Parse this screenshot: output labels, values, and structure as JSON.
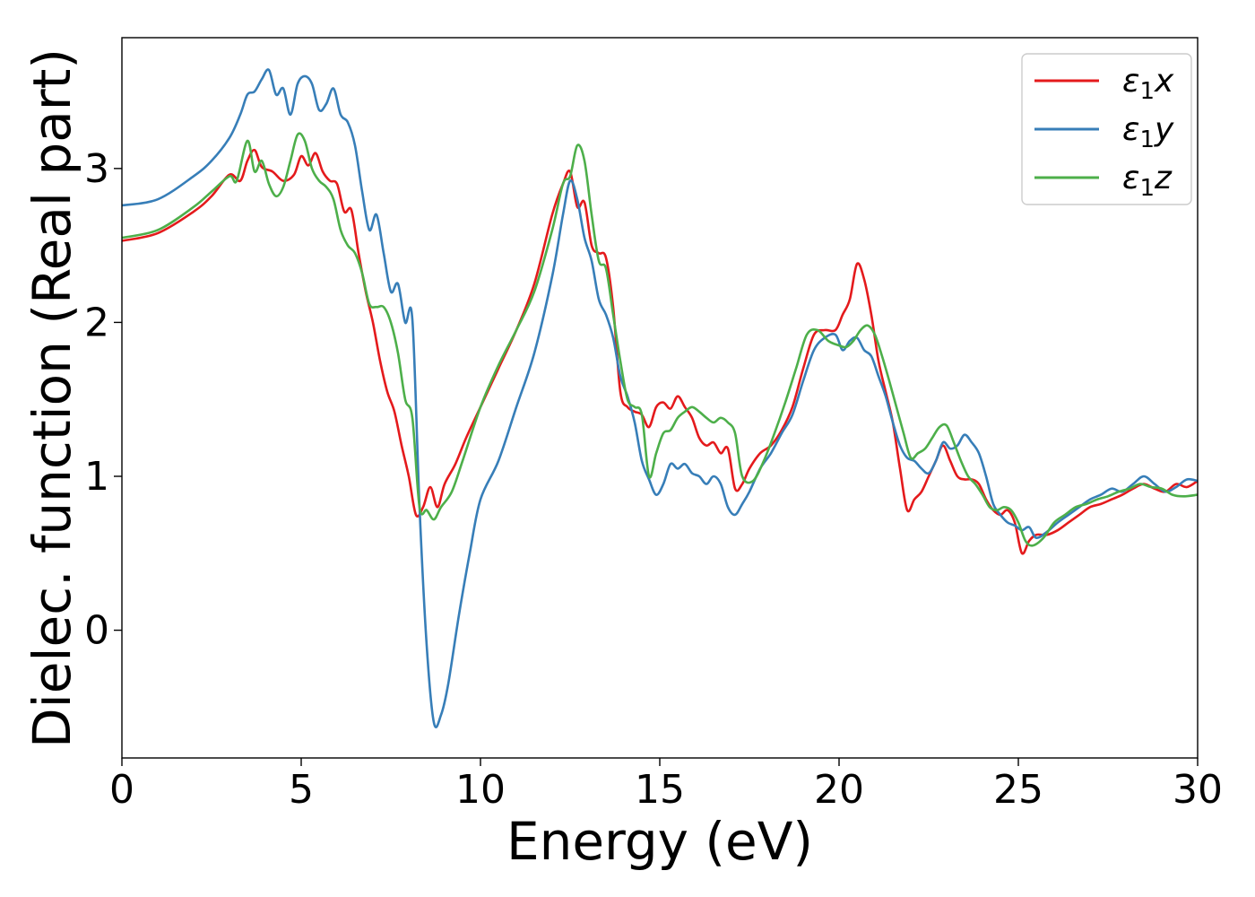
{
  "chart_data": {
    "type": "line",
    "xlabel": "Energy (eV)",
    "ylabel": "Dielec. function (Real part)",
    "xlim": [
      0,
      30
    ],
    "ylim": [
      -0.83,
      3.85
    ],
    "xticks": [
      0,
      5,
      10,
      15,
      20,
      25,
      30
    ],
    "yticks": [
      0,
      1,
      2,
      3
    ],
    "grid": false,
    "legend_position": "top-right",
    "series": [
      {
        "name": "ε1x",
        "label_base": "ε",
        "label_sub": "1",
        "label_suffix": "x",
        "color": "#e41a1c",
        "x": [
          0,
          1,
          2,
          2.5,
          3,
          3.3,
          3.5,
          3.7,
          3.9,
          4.2,
          4.5,
          4.8,
          5.0,
          5.2,
          5.4,
          5.6,
          5.8,
          6.0,
          6.2,
          6.4,
          6.6,
          6.8,
          7.0,
          7.2,
          7.4,
          7.6,
          7.8,
          8.0,
          8.2,
          8.4,
          8.6,
          8.8,
          9.0,
          9.3,
          9.6,
          10.0,
          10.5,
          11.0,
          11.5,
          12.0,
          12.3,
          12.5,
          12.7,
          12.9,
          13.1,
          13.3,
          13.5,
          13.7,
          13.9,
          14.1,
          14.3,
          14.5,
          14.7,
          14.9,
          15.1,
          15.3,
          15.5,
          15.7,
          15.9,
          16.1,
          16.3,
          16.5,
          16.7,
          16.9,
          17.1,
          17.3,
          17.5,
          17.8,
          18.1,
          18.4,
          18.7,
          19.0,
          19.3,
          19.6,
          19.9,
          20.1,
          20.3,
          20.5,
          20.7,
          20.9,
          21.1,
          21.3,
          21.5,
          21.7,
          21.9,
          22.1,
          22.3,
          22.5,
          22.7,
          22.9,
          23.1,
          23.3,
          23.5,
          23.7,
          23.9,
          24.1,
          24.3,
          24.5,
          24.7,
          24.9,
          25.1,
          25.3,
          25.5,
          25.8,
          26.1,
          26.4,
          26.7,
          27.0,
          27.3,
          27.6,
          27.9,
          28.2,
          28.5,
          28.8,
          29.1,
          29.4,
          29.7,
          30.0
        ],
        "y": [
          2.53,
          2.58,
          2.72,
          2.82,
          2.96,
          2.92,
          3.05,
          3.12,
          3.01,
          2.98,
          2.92,
          2.96,
          3.08,
          3.02,
          3.1,
          2.98,
          2.92,
          2.9,
          2.72,
          2.73,
          2.45,
          2.2,
          2.0,
          1.75,
          1.55,
          1.42,
          1.2,
          1.0,
          0.75,
          0.8,
          0.93,
          0.8,
          0.95,
          1.08,
          1.25,
          1.45,
          1.7,
          1.95,
          2.25,
          2.7,
          2.9,
          2.98,
          2.75,
          2.78,
          2.5,
          2.45,
          2.42,
          2.1,
          1.55,
          1.45,
          1.42,
          1.4,
          1.32,
          1.45,
          1.48,
          1.44,
          1.52,
          1.45,
          1.38,
          1.25,
          1.2,
          1.22,
          1.15,
          1.18,
          0.92,
          0.95,
          1.05,
          1.15,
          1.2,
          1.3,
          1.45,
          1.7,
          1.92,
          1.95,
          1.95,
          2.05,
          2.15,
          2.38,
          2.28,
          2.05,
          1.75,
          1.55,
          1.35,
          1.05,
          0.78,
          0.85,
          0.9,
          1.0,
          1.1,
          1.2,
          1.1,
          1.0,
          0.98,
          0.98,
          0.95,
          0.85,
          0.78,
          0.75,
          0.78,
          0.7,
          0.5,
          0.58,
          0.62,
          0.62,
          0.65,
          0.7,
          0.75,
          0.8,
          0.82,
          0.85,
          0.88,
          0.92,
          0.95,
          0.92,
          0.9,
          0.95,
          0.93,
          0.97
        ]
      },
      {
        "name": "ε1y",
        "label_base": "ε",
        "label_sub": "1",
        "label_suffix": "y",
        "color": "#377eb8",
        "x": [
          0,
          1,
          2,
          2.5,
          3,
          3.3,
          3.5,
          3.7,
          3.9,
          4.1,
          4.3,
          4.5,
          4.7,
          4.9,
          5.1,
          5.3,
          5.5,
          5.7,
          5.9,
          6.1,
          6.3,
          6.5,
          6.7,
          6.9,
          7.1,
          7.3,
          7.5,
          7.7,
          7.9,
          8.1,
          8.3,
          8.5,
          8.7,
          8.9,
          9.1,
          9.4,
          9.7,
          10.0,
          10.5,
          11.0,
          11.5,
          12.0,
          12.3,
          12.5,
          12.7,
          12.9,
          13.1,
          13.3,
          13.5,
          13.7,
          13.9,
          14.1,
          14.3,
          14.5,
          14.7,
          14.9,
          15.1,
          15.3,
          15.5,
          15.7,
          15.9,
          16.1,
          16.3,
          16.5,
          16.7,
          16.9,
          17.1,
          17.3,
          17.5,
          17.8,
          18.1,
          18.4,
          18.7,
          19.0,
          19.3,
          19.6,
          19.9,
          20.1,
          20.3,
          20.5,
          20.7,
          20.9,
          21.1,
          21.3,
          21.5,
          21.7,
          21.9,
          22.1,
          22.3,
          22.5,
          22.7,
          22.9,
          23.1,
          23.3,
          23.5,
          23.7,
          23.9,
          24.1,
          24.3,
          24.5,
          24.7,
          24.9,
          25.1,
          25.3,
          25.5,
          25.8,
          26.1,
          26.4,
          26.7,
          27.0,
          27.3,
          27.6,
          27.9,
          28.2,
          28.5,
          28.8,
          29.1,
          29.4,
          29.7,
          30.0
        ],
        "y": [
          2.76,
          2.8,
          2.95,
          3.05,
          3.2,
          3.35,
          3.48,
          3.5,
          3.58,
          3.64,
          3.48,
          3.52,
          3.35,
          3.55,
          3.6,
          3.55,
          3.38,
          3.42,
          3.52,
          3.35,
          3.3,
          3.15,
          2.85,
          2.6,
          2.7,
          2.45,
          2.2,
          2.25,
          2.0,
          2.02,
          0.8,
          -0.1,
          -0.6,
          -0.55,
          -0.35,
          0.1,
          0.5,
          0.85,
          1.1,
          1.45,
          1.8,
          2.3,
          2.7,
          2.92,
          2.8,
          2.55,
          2.4,
          2.15,
          2.05,
          1.9,
          1.65,
          1.52,
          1.35,
          1.1,
          0.98,
          0.88,
          0.95,
          1.08,
          1.05,
          1.08,
          1.02,
          1.0,
          0.95,
          1.0,
          0.95,
          0.8,
          0.75,
          0.82,
          0.9,
          1.05,
          1.15,
          1.28,
          1.4,
          1.62,
          1.82,
          1.9,
          1.92,
          1.82,
          1.88,
          1.9,
          1.82,
          1.78,
          1.65,
          1.52,
          1.35,
          1.2,
          1.12,
          1.1,
          1.05,
          1.02,
          1.1,
          1.22,
          1.18,
          1.2,
          1.27,
          1.22,
          1.15,
          1.0,
          0.82,
          0.75,
          0.7,
          0.68,
          0.65,
          0.67,
          0.6,
          0.64,
          0.7,
          0.75,
          0.8,
          0.85,
          0.88,
          0.92,
          0.9,
          0.95,
          1.0,
          0.95,
          0.9,
          0.93,
          0.98,
          0.97
        ]
      },
      {
        "name": "ε1z",
        "label_base": "ε",
        "label_sub": "1",
        "label_suffix": "z",
        "color": "#4daf4a",
        "x": [
          0,
          1,
          2,
          2.5,
          3,
          3.2,
          3.5,
          3.7,
          3.9,
          4.1,
          4.3,
          4.5,
          4.7,
          4.9,
          5.1,
          5.3,
          5.5,
          5.7,
          5.9,
          6.1,
          6.3,
          6.5,
          6.7,
          6.9,
          7.1,
          7.3,
          7.5,
          7.7,
          7.9,
          8.1,
          8.3,
          8.5,
          8.7,
          8.9,
          9.2,
          9.5,
          10.0,
          10.5,
          11.0,
          11.5,
          12.0,
          12.3,
          12.5,
          12.7,
          12.9,
          13.1,
          13.3,
          13.5,
          13.7,
          13.9,
          14.1,
          14.3,
          14.5,
          14.7,
          14.9,
          15.1,
          15.3,
          15.5,
          15.7,
          15.9,
          16.1,
          16.3,
          16.5,
          16.7,
          16.9,
          17.1,
          17.3,
          17.6,
          17.9,
          18.2,
          18.5,
          18.8,
          19.1,
          19.4,
          19.7,
          20.0,
          20.2,
          20.4,
          20.6,
          20.8,
          21.0,
          21.2,
          21.4,
          21.6,
          21.8,
          22.0,
          22.2,
          22.4,
          22.6,
          22.8,
          23.0,
          23.2,
          23.4,
          23.6,
          23.8,
          24.0,
          24.2,
          24.4,
          24.6,
          24.8,
          25.0,
          25.2,
          25.4,
          25.7,
          26.0,
          26.3,
          26.6,
          26.9,
          27.2,
          27.5,
          27.8,
          28.1,
          28.4,
          28.7,
          29.0,
          29.3,
          29.6,
          30.0
        ],
        "y": [
          2.55,
          2.6,
          2.75,
          2.85,
          2.95,
          2.92,
          3.18,
          2.98,
          3.05,
          2.9,
          2.82,
          2.88,
          3.05,
          3.22,
          3.18,
          3.0,
          2.92,
          2.88,
          2.8,
          2.6,
          2.5,
          2.45,
          2.32,
          2.12,
          2.1,
          2.1,
          2.0,
          1.8,
          1.5,
          1.38,
          0.8,
          0.78,
          0.72,
          0.8,
          0.9,
          1.1,
          1.45,
          1.72,
          1.95,
          2.2,
          2.6,
          2.9,
          2.95,
          3.15,
          3.05,
          2.7,
          2.4,
          2.35,
          2.05,
          1.75,
          1.5,
          1.45,
          1.4,
          1.0,
          1.15,
          1.28,
          1.3,
          1.38,
          1.42,
          1.45,
          1.42,
          1.38,
          1.35,
          1.38,
          1.35,
          1.28,
          1.0,
          0.97,
          1.1,
          1.28,
          1.48,
          1.7,
          1.92,
          1.95,
          1.88,
          1.85,
          1.84,
          1.88,
          1.95,
          1.98,
          1.92,
          1.78,
          1.62,
          1.45,
          1.28,
          1.12,
          1.15,
          1.18,
          1.25,
          1.32,
          1.33,
          1.22,
          1.1,
          1.0,
          0.95,
          0.88,
          0.8,
          0.78,
          0.8,
          0.78,
          0.7,
          0.58,
          0.55,
          0.6,
          0.7,
          0.75,
          0.8,
          0.82,
          0.85,
          0.87,
          0.9,
          0.92,
          0.95,
          0.93,
          0.92,
          0.88,
          0.87,
          0.88
        ]
      }
    ]
  }
}
